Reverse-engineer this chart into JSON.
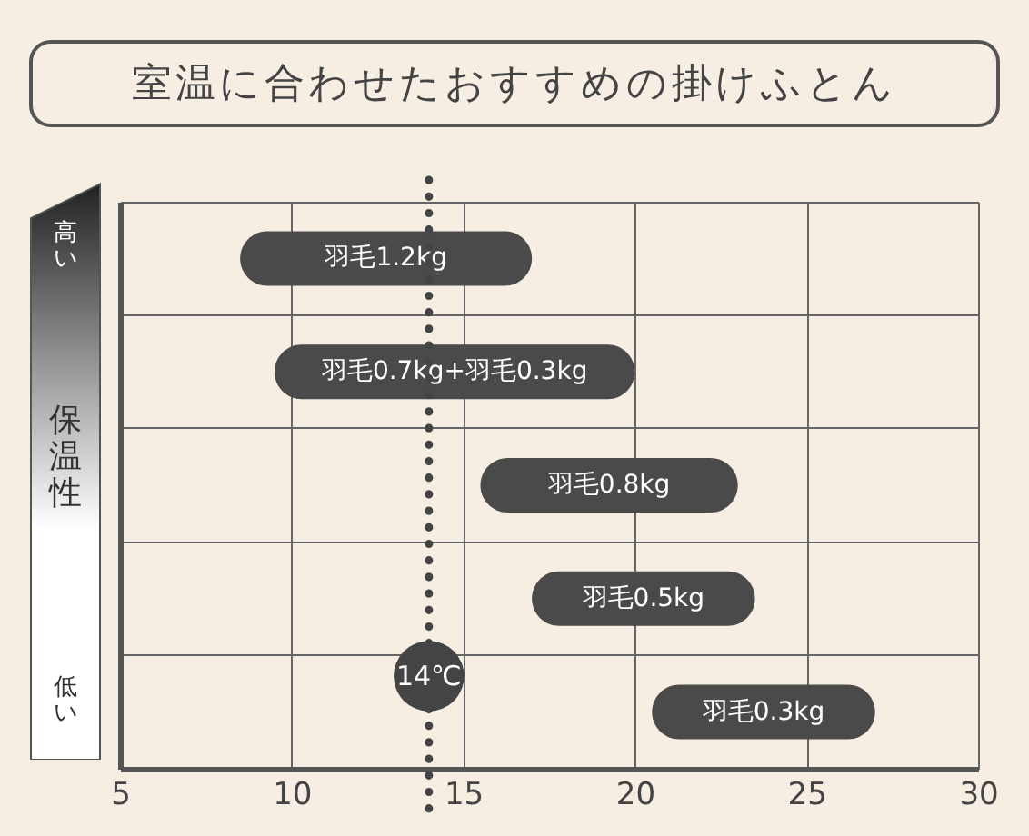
{
  "chart_data": {
    "type": "bar",
    "orientation": "horizontal",
    "title": "室温に合わせたおすすめの掛けふとん",
    "ylabel": "保温性",
    "annotations": [
      "高い",
      "低い"
    ],
    "categories": [
      "羽毛1.2kg",
      "羽毛0.7kg+羽毛0.3kg",
      "羽毛0.8kg",
      "羽毛0.5kg",
      "羽毛0.3kg"
    ],
    "base": [
      8.5,
      9.5,
      15.5,
      17,
      20.5
    ],
    "values": [
      8.5,
      10.5,
      7.5,
      6.5,
      6.5
    ],
    "color": "#4a4a4a",
    "xlim": [
      5,
      30
    ],
    "xticks": [
      5,
      10,
      15,
      20,
      25,
      30
    ],
    "grid": true,
    "tick_labels": "x",
    "ref_lines": [
      {
        "axis": "x",
        "value": 14,
        "label": "14℃"
      }
    ]
  }
}
